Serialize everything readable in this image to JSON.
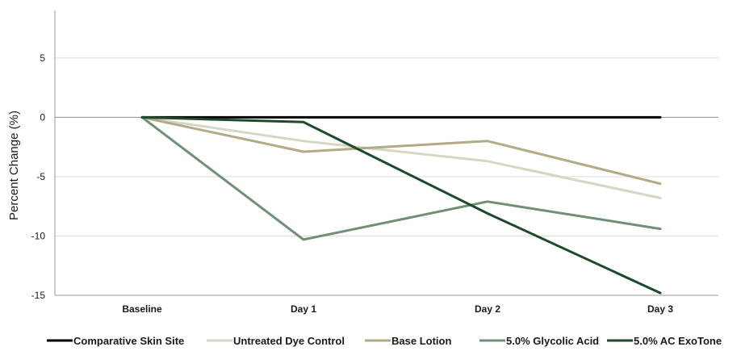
{
  "chart_data": {
    "type": "line",
    "title": "",
    "xlabel": "",
    "ylabel": "Percent Change (%)",
    "categories": [
      "Baseline",
      "Day 1",
      "Day 2",
      "Day 3"
    ],
    "ylim": [
      -15,
      9
    ],
    "yticks": [
      5,
      0,
      -5,
      -10,
      -15
    ],
    "grid": "horizontal",
    "legend": "bottom",
    "series": [
      {
        "name": "Comparative Skin Site",
        "color": "#000000",
        "values": [
          0,
          0,
          0,
          0
        ]
      },
      {
        "name": "Untreated Dye Control",
        "color": "#d6d6c4",
        "values": [
          0,
          -2.0,
          -3.7,
          -6.8
        ]
      },
      {
        "name": "Base Lotion",
        "color": "#b2ab86",
        "values": [
          0,
          -2.9,
          -2.0,
          -5.6
        ]
      },
      {
        "name": "5.0% Glycolic Acid",
        "color": "#6f9075",
        "values": [
          0,
          -10.3,
          -7.1,
          -9.4
        ]
      },
      {
        "name": "5.0% AC ExoTone",
        "color": "#1e4a2a",
        "values": [
          0,
          -0.4,
          -8.1,
          -14.8
        ]
      }
    ]
  }
}
